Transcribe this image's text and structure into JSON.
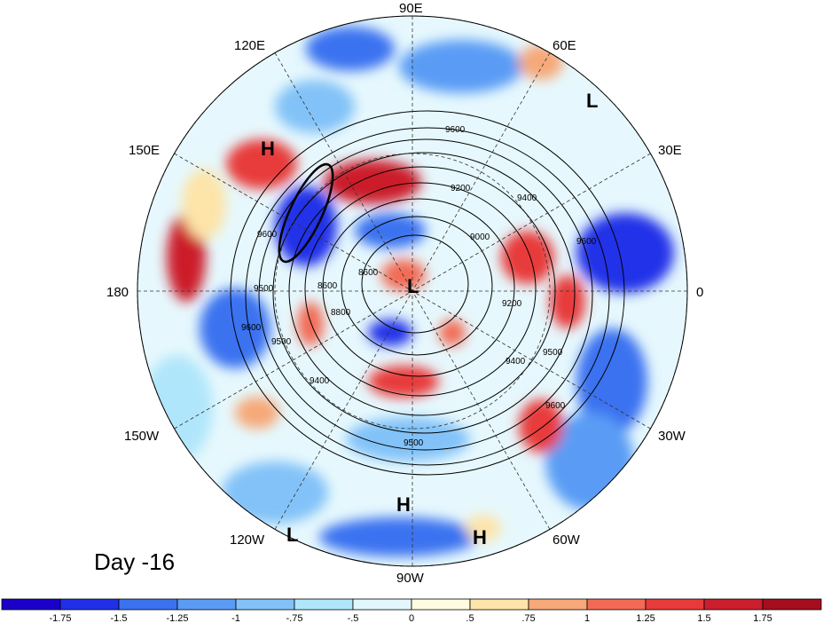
{
  "map": {
    "longitude_labels": [
      "90E",
      "60E",
      "30E",
      "0",
      "30W",
      "60W",
      "90W",
      "120W",
      "150W",
      "180",
      "150E",
      "120E"
    ],
    "pressure_systems": [
      {
        "type": "H",
        "label": "H"
      },
      {
        "type": "L",
        "label": "L"
      },
      {
        "type": "L",
        "label": "L"
      },
      {
        "type": "H",
        "label": "H"
      },
      {
        "type": "H",
        "label": "H"
      },
      {
        "type": "L",
        "label": "L"
      }
    ],
    "contour_labels": [
      "9600",
      "9200",
      "9400",
      "9000",
      "8800",
      "8600",
      "9200",
      "9500",
      "9400",
      "9600",
      "9600",
      "9500",
      "9400",
      "9500",
      "9600",
      "9500",
      "9600",
      "8600"
    ]
  },
  "day_label": "Day -16",
  "colorbar": {
    "colors": [
      "#1a00c8",
      "#2030e8",
      "#3a72f0",
      "#5a9cf5",
      "#82c2f8",
      "#b0e6fb",
      "#e2f7fd",
      "#fffbe0",
      "#fde4a8",
      "#f6a878",
      "#f26a55",
      "#e83a3a",
      "#cc1e2c",
      "#a50e1e"
    ],
    "tick_labels": [
      "-1.75",
      "-1.5",
      "-1.25",
      "-1",
      "-.75",
      "-.5",
      "0",
      ".5",
      ".75",
      "1",
      "1.25",
      "1.5",
      "1.75"
    ]
  }
}
